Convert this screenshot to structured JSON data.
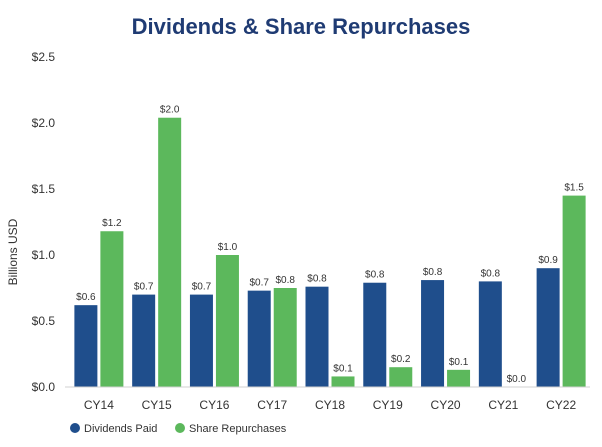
{
  "chart_data": {
    "type": "bar",
    "title": "Dividends & Share Repurchases",
    "xlabel": "",
    "ylabel": "Billions USD",
    "categories": [
      "CY14",
      "CY15",
      "CY16",
      "CY17",
      "CY18",
      "CY19",
      "CY20",
      "CY21",
      "CY22"
    ],
    "series": [
      {
        "name": "Dividends Paid",
        "color": "#1f4e8c",
        "values": [
          0.62,
          0.7,
          0.7,
          0.73,
          0.76,
          0.79,
          0.81,
          0.8,
          0.9
        ],
        "labels": [
          "$0.6",
          "$0.7",
          "$0.7",
          "$0.7",
          "$0.8",
          "$0.8",
          "$0.8",
          "$0.8",
          "$0.9"
        ]
      },
      {
        "name": "Share Repurchases",
        "color": "#5cb85c",
        "values": [
          1.18,
          2.04,
          1.0,
          0.75,
          0.08,
          0.15,
          0.13,
          0.0,
          1.45
        ],
        "labels": [
          "$1.2",
          "$2.0",
          "$1.0",
          "$0.8",
          "$0.1",
          "$0.2",
          "$0.1",
          "$0.0",
          "$1.5"
        ]
      }
    ],
    "ylim": [
      0,
      2.5
    ],
    "yticks": [
      0,
      0.5,
      1.0,
      1.5,
      2.0,
      2.5
    ],
    "ytick_labels": [
      "$0.0",
      "$0.5",
      "$1.0",
      "$1.5",
      "$2.0",
      "$2.5"
    ],
    "grid": false,
    "legend_position": "bottom-left"
  }
}
